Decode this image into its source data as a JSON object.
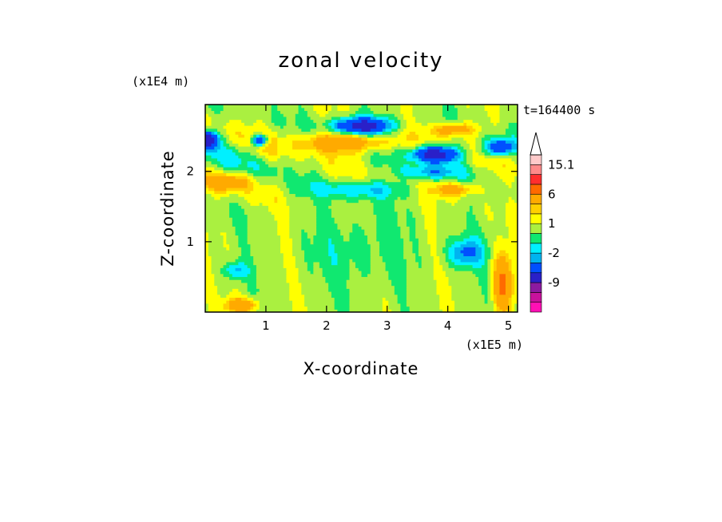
{
  "chart_data": {
    "type": "heatmap",
    "title": "zonal velocity",
    "xlabel": "X-coordinate",
    "ylabel": "Z-coordinate",
    "x_scale_label": "(x1E5 m)",
    "y_scale_label": "(x1E4 m)",
    "time_label": "t=164400 s",
    "xlim": [
      0,
      5.15
    ],
    "ylim": [
      0,
      2.95
    ],
    "x_ticks": [
      1,
      2,
      3,
      4,
      5
    ],
    "y_ticks": [
      1,
      2
    ],
    "colorbar": {
      "levels": [
        -15,
        -12,
        -9,
        -6,
        -3,
        -2,
        -1,
        0,
        1,
        2,
        3,
        6,
        9,
        12,
        15.1
      ],
      "colors": [
        "#ff10b4",
        "#c8129c",
        "#8c1aa0",
        "#2a20c8",
        "#0050ff",
        "#00b4f0",
        "#00f0ff",
        "#10e870",
        "#aaf040",
        "#ffff00",
        "#ffd000",
        "#ffaa00",
        "#ff6a00",
        "#ff2e2e",
        "#ff8a8a",
        "#ffcaca"
      ],
      "labels": [
        {
          "text": "15.1",
          "level": 15.1
        },
        {
          "text": "6",
          "level": 6
        },
        {
          "text": "1",
          "level": 1
        },
        {
          "text": "-2",
          "level": -2
        },
        {
          "text": "-9",
          "level": -9
        }
      ],
      "extend_max": true
    }
  }
}
